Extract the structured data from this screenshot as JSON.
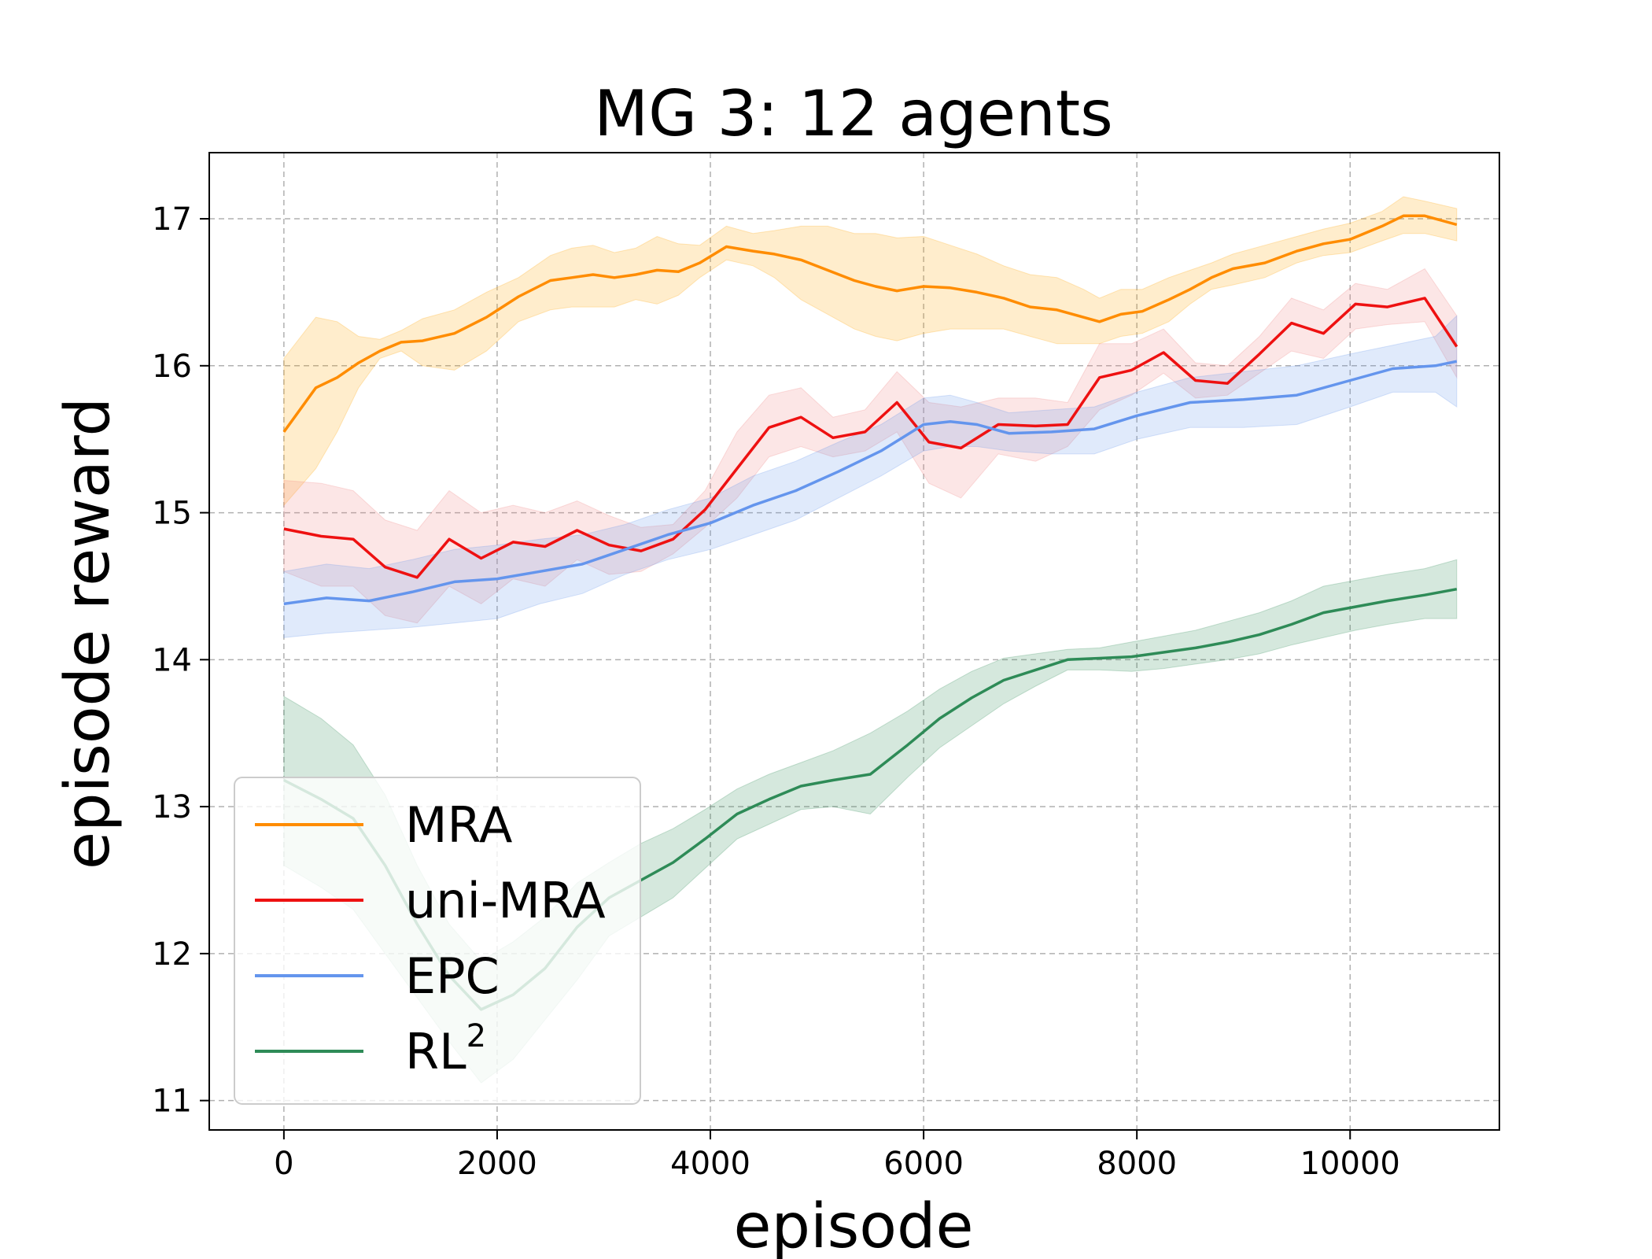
{
  "chart_data": {
    "type": "line",
    "title": "MG 3: 12 agents",
    "xlabel": "episode",
    "ylabel": "episode reward",
    "xlim": [
      -700,
      11400
    ],
    "ylim": [
      10.8,
      17.45
    ],
    "grid": true,
    "legend_position": "lower-left",
    "x_ticks": [
      0,
      2000,
      4000,
      6000,
      8000,
      10000
    ],
    "x_tick_labels": [
      "0",
      "2000",
      "4000",
      "6000",
      "8000",
      "10000"
    ],
    "y_ticks": [
      11,
      12,
      13,
      14,
      15,
      16,
      17
    ],
    "y_tick_labels": [
      "11",
      "12",
      "13",
      "14",
      "15",
      "16",
      "17"
    ],
    "series": [
      {
        "name": "MRA",
        "legend_label": "MRA",
        "legend_sup": "",
        "color": "#ff8c00",
        "band_color": "#ffa500",
        "x": [
          0,
          300,
          500,
          700,
          900,
          1100,
          1300,
          1600,
          1900,
          2200,
          2500,
          2700,
          2900,
          3100,
          3300,
          3500,
          3700,
          3900,
          4150,
          4400,
          4600,
          4850,
          5100,
          5350,
          5550,
          5750,
          6000,
          6250,
          6500,
          6750,
          7000,
          7250,
          7500,
          7650,
          7850,
          8050,
          8300,
          8500,
          8700,
          8900,
          9200,
          9500,
          9750,
          10000,
          10300,
          10500,
          10700,
          11000
        ],
        "y": [
          15.55,
          15.85,
          15.92,
          16.02,
          16.1,
          16.16,
          16.17,
          16.22,
          16.33,
          16.47,
          16.58,
          16.6,
          16.62,
          16.6,
          16.62,
          16.65,
          16.64,
          16.7,
          16.81,
          16.78,
          16.76,
          16.72,
          16.65,
          16.58,
          16.54,
          16.51,
          16.54,
          16.53,
          16.5,
          16.46,
          16.4,
          16.38,
          16.33,
          16.3,
          16.35,
          16.37,
          16.45,
          16.52,
          16.6,
          16.66,
          16.7,
          16.78,
          16.83,
          16.86,
          16.95,
          17.02,
          17.02,
          16.96
        ],
        "lower": [
          15.05,
          15.3,
          15.55,
          15.85,
          16.05,
          16.1,
          16.0,
          15.97,
          16.1,
          16.3,
          16.38,
          16.4,
          16.4,
          16.4,
          16.45,
          16.42,
          16.48,
          16.6,
          16.72,
          16.68,
          16.6,
          16.45,
          16.35,
          16.25,
          16.2,
          16.17,
          16.22,
          16.25,
          16.25,
          16.25,
          16.2,
          16.15,
          16.15,
          16.15,
          16.2,
          16.22,
          16.3,
          16.42,
          16.52,
          16.55,
          16.6,
          16.7,
          16.75,
          16.77,
          16.85,
          16.9,
          16.9,
          16.85
        ],
        "upper": [
          16.05,
          16.33,
          16.3,
          16.2,
          16.18,
          16.24,
          16.32,
          16.38,
          16.5,
          16.6,
          16.75,
          16.8,
          16.82,
          16.77,
          16.8,
          16.88,
          16.83,
          16.82,
          16.95,
          16.9,
          16.92,
          16.95,
          16.95,
          16.9,
          16.9,
          16.87,
          16.88,
          16.82,
          16.76,
          16.68,
          16.62,
          16.6,
          16.52,
          16.46,
          16.52,
          16.52,
          16.6,
          16.65,
          16.7,
          16.76,
          16.82,
          16.88,
          16.93,
          16.97,
          17.05,
          17.15,
          17.12,
          17.07
        ]
      },
      {
        "name": "uni-MRA",
        "legend_label": "uni-MRA",
        "legend_sup": "",
        "color": "#ee1111",
        "band_color": "#f08080",
        "x": [
          0,
          350,
          650,
          950,
          1250,
          1550,
          1850,
          2150,
          2450,
          2750,
          3050,
          3350,
          3650,
          3950,
          4250,
          4550,
          4850,
          5150,
          5450,
          5750,
          6050,
          6350,
          6700,
          7050,
          7350,
          7650,
          7950,
          8250,
          8550,
          8850,
          9150,
          9450,
          9750,
          10050,
          10350,
          10700,
          11000
        ],
        "y": [
          14.89,
          14.84,
          14.82,
          14.63,
          14.56,
          14.82,
          14.69,
          14.8,
          14.77,
          14.88,
          14.78,
          14.74,
          14.82,
          15.02,
          15.3,
          15.58,
          15.65,
          15.51,
          15.55,
          15.75,
          15.48,
          15.44,
          15.6,
          15.59,
          15.6,
          15.92,
          15.97,
          16.09,
          15.9,
          15.88,
          16.08,
          16.29,
          16.22,
          16.42,
          16.4,
          16.46,
          16.13
        ],
        "lower": [
          14.6,
          14.5,
          14.5,
          14.3,
          14.25,
          14.5,
          14.38,
          14.55,
          14.5,
          14.68,
          14.58,
          14.6,
          14.72,
          14.9,
          15.1,
          15.38,
          15.45,
          15.38,
          15.42,
          15.55,
          15.2,
          15.1,
          15.4,
          15.35,
          15.45,
          15.7,
          15.8,
          15.95,
          15.78,
          15.8,
          15.95,
          16.1,
          16.05,
          16.25,
          16.28,
          16.3,
          15.92
        ],
        "upper": [
          15.22,
          15.2,
          15.15,
          14.95,
          14.88,
          15.15,
          15.0,
          15.05,
          15.0,
          15.08,
          14.98,
          14.9,
          14.92,
          15.15,
          15.55,
          15.8,
          15.85,
          15.65,
          15.7,
          15.96,
          15.75,
          15.72,
          15.78,
          15.78,
          15.75,
          16.15,
          16.15,
          16.25,
          16.02,
          16.0,
          16.2,
          16.46,
          16.38,
          16.56,
          16.52,
          16.66,
          16.34
        ]
      },
      {
        "name": "EPC",
        "legend_label": "EPC",
        "legend_sup": "",
        "color": "#6495ed",
        "band_color": "#6495ed",
        "x": [
          0,
          400,
          800,
          1200,
          1600,
          2000,
          2400,
          2800,
          3200,
          3600,
          4000,
          4400,
          4800,
          5200,
          5600,
          6000,
          6250,
          6500,
          6800,
          7200,
          7600,
          8000,
          8500,
          9000,
          9500,
          10000,
          10400,
          10800,
          11000
        ],
        "y": [
          14.38,
          14.42,
          14.4,
          14.46,
          14.53,
          14.55,
          14.6,
          14.65,
          14.75,
          14.85,
          14.93,
          15.05,
          15.15,
          15.28,
          15.42,
          15.6,
          15.62,
          15.6,
          15.54,
          15.55,
          15.57,
          15.66,
          15.75,
          15.77,
          15.8,
          15.9,
          15.98,
          16.0,
          16.03
        ],
        "lower": [
          14.15,
          14.18,
          14.2,
          14.22,
          14.25,
          14.28,
          14.38,
          14.45,
          14.58,
          14.68,
          14.75,
          14.85,
          14.95,
          15.1,
          15.25,
          15.42,
          15.45,
          15.45,
          15.42,
          15.4,
          15.4,
          15.5,
          15.58,
          15.58,
          15.6,
          15.72,
          15.82,
          15.82,
          15.72
        ],
        "upper": [
          14.6,
          14.65,
          14.62,
          14.68,
          14.75,
          14.78,
          14.82,
          14.85,
          14.92,
          15.02,
          15.1,
          15.25,
          15.35,
          15.48,
          15.6,
          15.78,
          15.8,
          15.75,
          15.68,
          15.7,
          15.72,
          15.82,
          15.92,
          15.96,
          16.0,
          16.08,
          16.14,
          16.2,
          16.34
        ]
      },
      {
        "name": "RL2",
        "legend_label": "RL",
        "legend_sup": "2",
        "color": "#2e8b57",
        "band_color": "#2e8b57",
        "x": [
          0,
          350,
          650,
          950,
          1250,
          1550,
          1850,
          2150,
          2450,
          2750,
          3050,
          3350,
          3650,
          3950,
          4250,
          4550,
          4850,
          5150,
          5500,
          5850,
          6150,
          6450,
          6750,
          7050,
          7350,
          7650,
          7950,
          8250,
          8550,
          8850,
          9150,
          9450,
          9750,
          10050,
          10350,
          10700,
          11000
        ],
        "y": [
          13.18,
          13.05,
          12.92,
          12.6,
          12.2,
          11.85,
          11.62,
          11.72,
          11.9,
          12.18,
          12.38,
          12.5,
          12.62,
          12.78,
          12.95,
          13.05,
          13.14,
          13.18,
          13.22,
          13.42,
          13.6,
          13.74,
          13.86,
          13.93,
          14.0,
          14.01,
          14.02,
          14.05,
          14.08,
          14.12,
          14.17,
          14.24,
          14.32,
          14.36,
          14.4,
          14.44,
          14.48
        ],
        "lower": [
          12.6,
          12.45,
          12.3,
          12.0,
          11.7,
          11.4,
          11.12,
          11.28,
          11.55,
          11.82,
          12.12,
          12.25,
          12.38,
          12.58,
          12.78,
          12.88,
          12.98,
          13.0,
          12.95,
          13.2,
          13.4,
          13.55,
          13.7,
          13.82,
          13.93,
          13.93,
          13.92,
          13.94,
          13.97,
          14.0,
          14.04,
          14.1,
          14.15,
          14.2,
          14.24,
          14.28,
          14.28
        ],
        "upper": [
          13.75,
          13.6,
          13.42,
          13.08,
          12.6,
          12.2,
          11.95,
          12.08,
          12.25,
          12.48,
          12.62,
          12.75,
          12.85,
          12.98,
          13.12,
          13.22,
          13.3,
          13.38,
          13.5,
          13.65,
          13.8,
          13.92,
          14.01,
          14.04,
          14.07,
          14.08,
          14.12,
          14.16,
          14.2,
          14.26,
          14.32,
          14.4,
          14.5,
          14.54,
          14.58,
          14.62,
          14.68
        ]
      }
    ]
  }
}
